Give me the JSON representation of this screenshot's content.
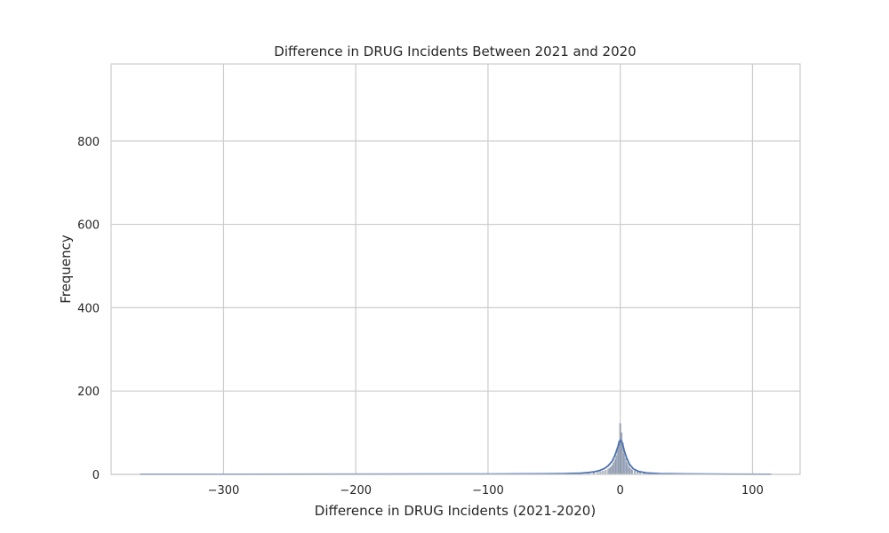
{
  "chart_data": {
    "type": "histogram",
    "title": "Difference in DRUG Incidents Between 2021 and 2020",
    "xlabel": "Difference in DRUG Incidents (2021-2020)",
    "ylabel": "Frequency",
    "xlim": [
      -385,
      136
    ],
    "ylim": [
      0,
      985
    ],
    "xticks": [
      -300,
      -200,
      -100,
      0,
      100
    ],
    "xtick_labels": [
      "−300",
      "−200",
      "−100",
      "0",
      "100"
    ],
    "yticks": [
      0,
      200,
      400,
      600,
      800
    ],
    "ytick_labels": [
      "0",
      "200",
      "400",
      "600",
      "800"
    ],
    "grid": true,
    "bar_color": "#4c72b0",
    "kde_color": "#4c72b0",
    "grid_color": "#cccccc",
    "bins": [
      {
        "x": -363,
        "count": 1
      },
      {
        "x": -300,
        "count": 1
      },
      {
        "x": -190,
        "count": 1
      },
      {
        "x": -120,
        "count": 1
      },
      {
        "x": -60,
        "count": 1
      },
      {
        "x": -40,
        "count": 1
      },
      {
        "x": -30,
        "count": 2
      },
      {
        "x": -24,
        "count": 3
      },
      {
        "x": -20,
        "count": 4
      },
      {
        "x": -17,
        "count": 5
      },
      {
        "x": -15,
        "count": 7
      },
      {
        "x": -13,
        "count": 8
      },
      {
        "x": -11,
        "count": 10
      },
      {
        "x": -9,
        "count": 13
      },
      {
        "x": -8,
        "count": 15
      },
      {
        "x": -7,
        "count": 18
      },
      {
        "x": -6,
        "count": 22
      },
      {
        "x": -5,
        "count": 28
      },
      {
        "x": -4,
        "count": 35
      },
      {
        "x": -3,
        "count": 45
      },
      {
        "x": -2,
        "count": 60
      },
      {
        "x": -1,
        "count": 80
      },
      {
        "x": 0,
        "count": 122
      },
      {
        "x": 1,
        "count": 100
      },
      {
        "x": 2,
        "count": 75
      },
      {
        "x": 3,
        "count": 50
      },
      {
        "x": 4,
        "count": 38
      },
      {
        "x": 5,
        "count": 28
      },
      {
        "x": 6,
        "count": 22
      },
      {
        "x": 7,
        "count": 16
      },
      {
        "x": 8,
        "count": 13
      },
      {
        "x": 9,
        "count": 10
      },
      {
        "x": 11,
        "count": 8
      },
      {
        "x": 13,
        "count": 6
      },
      {
        "x": 15,
        "count": 5
      },
      {
        "x": 18,
        "count": 3
      },
      {
        "x": 22,
        "count": 2
      },
      {
        "x": 30,
        "count": 1
      },
      {
        "x": 45,
        "count": 1
      },
      {
        "x": 70,
        "count": 1
      },
      {
        "x": 114,
        "count": 1
      }
    ],
    "kde": [
      [
        -363,
        0.3
      ],
      [
        -300,
        0.3
      ],
      [
        -200,
        0.5
      ],
      [
        -100,
        0.8
      ],
      [
        -60,
        1.2
      ],
      [
        -40,
        2
      ],
      [
        -30,
        3
      ],
      [
        -24,
        4.5
      ],
      [
        -20,
        6
      ],
      [
        -16,
        9
      ],
      [
        -12,
        14
      ],
      [
        -9,
        21
      ],
      [
        -6,
        32
      ],
      [
        -4,
        46
      ],
      [
        -2,
        64
      ],
      [
        -1,
        75
      ],
      [
        0,
        82
      ],
      [
        1,
        80
      ],
      [
        2,
        70
      ],
      [
        3,
        57
      ],
      [
        5,
        38
      ],
      [
        7,
        24
      ],
      [
        10,
        13
      ],
      [
        14,
        7
      ],
      [
        20,
        3.5
      ],
      [
        30,
        1.8
      ],
      [
        50,
        1
      ],
      [
        80,
        0.6
      ],
      [
        114,
        0.3
      ]
    ]
  }
}
